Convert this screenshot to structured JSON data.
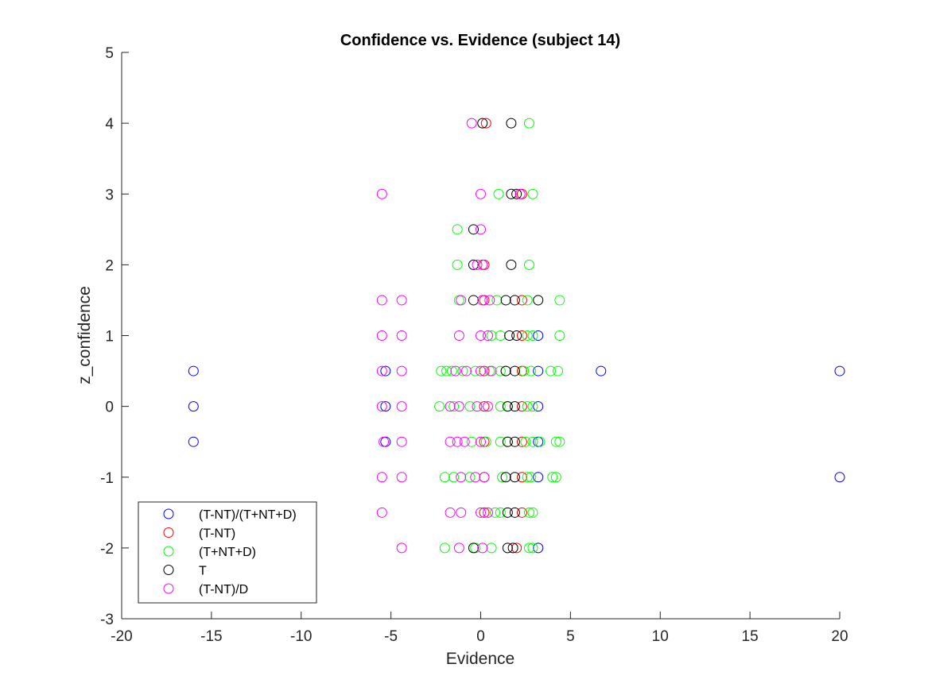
{
  "chart_data": {
    "type": "scatter",
    "title": "Confidence vs. Evidence (subject 14)",
    "xlabel": "Evidence",
    "ylabel": "z_confidence",
    "xlim": [
      -20,
      20
    ],
    "ylim": [
      -3,
      5
    ],
    "xticks": [
      "-20",
      "-15",
      "-10",
      "-5",
      "0",
      "5",
      "10",
      "15",
      "20"
    ],
    "yticks": [
      "-3",
      "-2",
      "-1",
      "0",
      "1",
      "2",
      "3",
      "4",
      "5"
    ],
    "grid": false,
    "legend_position": "bottom-left",
    "marker": "open-circle",
    "series": [
      {
        "name": "(T-NT)/(T+NT+D)",
        "color": "#0000ff",
        "points": [
          [
            -16,
            0.5
          ],
          [
            -16,
            0
          ],
          [
            -16,
            -0.5
          ],
          [
            -5.3,
            0.5
          ],
          [
            -5.3,
            0
          ],
          [
            -5.3,
            -0.5
          ],
          [
            3.2,
            1
          ],
          [
            3.2,
            0.5
          ],
          [
            3.2,
            0
          ],
          [
            3.2,
            -0.5
          ],
          [
            3.2,
            -1
          ],
          [
            3.2,
            -2
          ],
          [
            6.7,
            0.5
          ],
          [
            20,
            0.5
          ],
          [
            20,
            -1
          ]
        ]
      },
      {
        "name": "(T-NT)",
        "color": "#ff0000",
        "points": [
          [
            0.3,
            4
          ],
          [
            0.2,
            2
          ],
          [
            0.2,
            1.5
          ],
          [
            0.2,
            0.5
          ],
          [
            0.2,
            0
          ],
          [
            0.2,
            -0.5
          ],
          [
            0.2,
            -1
          ],
          [
            0.2,
            -1.5
          ],
          [
            2.3,
            3
          ],
          [
            2.3,
            1.5
          ],
          [
            2.3,
            1
          ],
          [
            2.3,
            0.5
          ],
          [
            2.3,
            0
          ],
          [
            2.3,
            -0.5
          ],
          [
            2.3,
            -1
          ],
          [
            2.3,
            -1.5
          ],
          [
            2,
            -2
          ]
        ]
      },
      {
        "name": "(T+NT+D)",
        "color": "#00ff00",
        "points": [
          [
            2.7,
            4
          ],
          [
            1,
            3
          ],
          [
            2.9,
            3
          ],
          [
            -1.3,
            2.5
          ],
          [
            -1.3,
            2
          ],
          [
            2.7,
            2
          ],
          [
            -1.2,
            1.5
          ],
          [
            0.9,
            1.5
          ],
          [
            2.6,
            1.5
          ],
          [
            3.2,
            1.5
          ],
          [
            4.4,
            1.5
          ],
          [
            0.6,
            1
          ],
          [
            1.1,
            1
          ],
          [
            2.6,
            1
          ],
          [
            2.9,
            1
          ],
          [
            4.4,
            1
          ],
          [
            -2.2,
            0.5
          ],
          [
            -1.9,
            0.5
          ],
          [
            -1.6,
            0.5
          ],
          [
            -1,
            0.5
          ],
          [
            -0.3,
            0.5
          ],
          [
            0.5,
            0.5
          ],
          [
            1.1,
            0.5
          ],
          [
            1.4,
            0.5
          ],
          [
            2.4,
            0.5
          ],
          [
            2.8,
            0.5
          ],
          [
            3.9,
            0.5
          ],
          [
            4.3,
            0.5
          ],
          [
            -2.3,
            0
          ],
          [
            -1.5,
            0
          ],
          [
            -0.6,
            0
          ],
          [
            1.1,
            0
          ],
          [
            1.5,
            0
          ],
          [
            2.6,
            0
          ],
          [
            2.9,
            0
          ],
          [
            -0.5,
            -0.5
          ],
          [
            0.3,
            -0.5
          ],
          [
            1.1,
            -0.5
          ],
          [
            1.5,
            -0.5
          ],
          [
            2.5,
            -0.5
          ],
          [
            2.9,
            -0.5
          ],
          [
            3.3,
            -0.5
          ],
          [
            4.2,
            -0.5
          ],
          [
            4.4,
            -0.5
          ],
          [
            -2,
            -1
          ],
          [
            -1.5,
            -1
          ],
          [
            -0.6,
            -1
          ],
          [
            0.2,
            -1
          ],
          [
            1.2,
            -1
          ],
          [
            2.6,
            -1
          ],
          [
            2.8,
            -1
          ],
          [
            4,
            -1
          ],
          [
            4.2,
            -1
          ],
          [
            0.8,
            -1.5
          ],
          [
            1.1,
            -1.5
          ],
          [
            2.7,
            -1.5
          ],
          [
            2.9,
            -1.5
          ],
          [
            -2,
            -2
          ],
          [
            -0.3,
            -2
          ],
          [
            0.6,
            -2
          ],
          [
            2.7,
            -2
          ],
          [
            2.9,
            -2
          ]
        ]
      },
      {
        "name": "T",
        "color": "#000000",
        "points": [
          [
            0.1,
            4
          ],
          [
            1.7,
            4
          ],
          [
            1.7,
            3
          ],
          [
            2,
            3
          ],
          [
            -0.4,
            2.5
          ],
          [
            -0.4,
            2
          ],
          [
            1.7,
            2
          ],
          [
            -0.4,
            1.5
          ],
          [
            1.4,
            1.5
          ],
          [
            1.9,
            1.5
          ],
          [
            3.2,
            1.5
          ],
          [
            1.6,
            1
          ],
          [
            2,
            1
          ],
          [
            1.4,
            0.5
          ],
          [
            1.9,
            0.5
          ],
          [
            1.5,
            0
          ],
          [
            1.9,
            0
          ],
          [
            1.5,
            -0.5
          ],
          [
            1.9,
            -0.5
          ],
          [
            1.4,
            -1
          ],
          [
            1.9,
            -1
          ],
          [
            1.5,
            -1.5
          ],
          [
            1.9,
            -1.5
          ],
          [
            -0.4,
            -2
          ],
          [
            1.5,
            -2
          ],
          [
            1.8,
            -2
          ]
        ]
      },
      {
        "name": "(T-NT)/D",
        "color": "#ff00ff",
        "points": [
          [
            -0.5,
            4
          ],
          [
            -5.5,
            3
          ],
          [
            0,
            3
          ],
          [
            2.2,
            3
          ],
          [
            0,
            2.5
          ],
          [
            -0.2,
            2
          ],
          [
            0.1,
            2
          ],
          [
            -5.5,
            1.5
          ],
          [
            -4.4,
            1.5
          ],
          [
            -1.1,
            1.5
          ],
          [
            0.1,
            1.5
          ],
          [
            0.5,
            1.5
          ],
          [
            -5.5,
            1
          ],
          [
            -4.4,
            1
          ],
          [
            -1.2,
            1
          ],
          [
            0,
            1
          ],
          [
            0.4,
            1
          ],
          [
            -5.5,
            0.5
          ],
          [
            -4.4,
            0.5
          ],
          [
            -1.4,
            0.5
          ],
          [
            -0.8,
            0.5
          ],
          [
            0,
            0.5
          ],
          [
            0.6,
            0.5
          ],
          [
            -5.5,
            0
          ],
          [
            -4.4,
            0
          ],
          [
            -1.7,
            0
          ],
          [
            -1.2,
            0
          ],
          [
            -0.2,
            0
          ],
          [
            0.4,
            0
          ],
          [
            -5.4,
            -0.5
          ],
          [
            -4.4,
            -0.5
          ],
          [
            -1.7,
            -0.5
          ],
          [
            -1.3,
            -0.5
          ],
          [
            -0.9,
            -0.5
          ],
          [
            0,
            -0.5
          ],
          [
            -5.5,
            -1
          ],
          [
            -4.4,
            -1
          ],
          [
            -1.1,
            -1
          ],
          [
            -0.3,
            -1
          ],
          [
            0.2,
            -1
          ],
          [
            -5.5,
            -1.5
          ],
          [
            -1.7,
            -1.5
          ],
          [
            -1.1,
            -1.5
          ],
          [
            0,
            -1.5
          ],
          [
            0.4,
            -1.5
          ],
          [
            -4.4,
            -2
          ],
          [
            -1.2,
            -2
          ],
          [
            0.1,
            -2
          ]
        ]
      }
    ]
  }
}
